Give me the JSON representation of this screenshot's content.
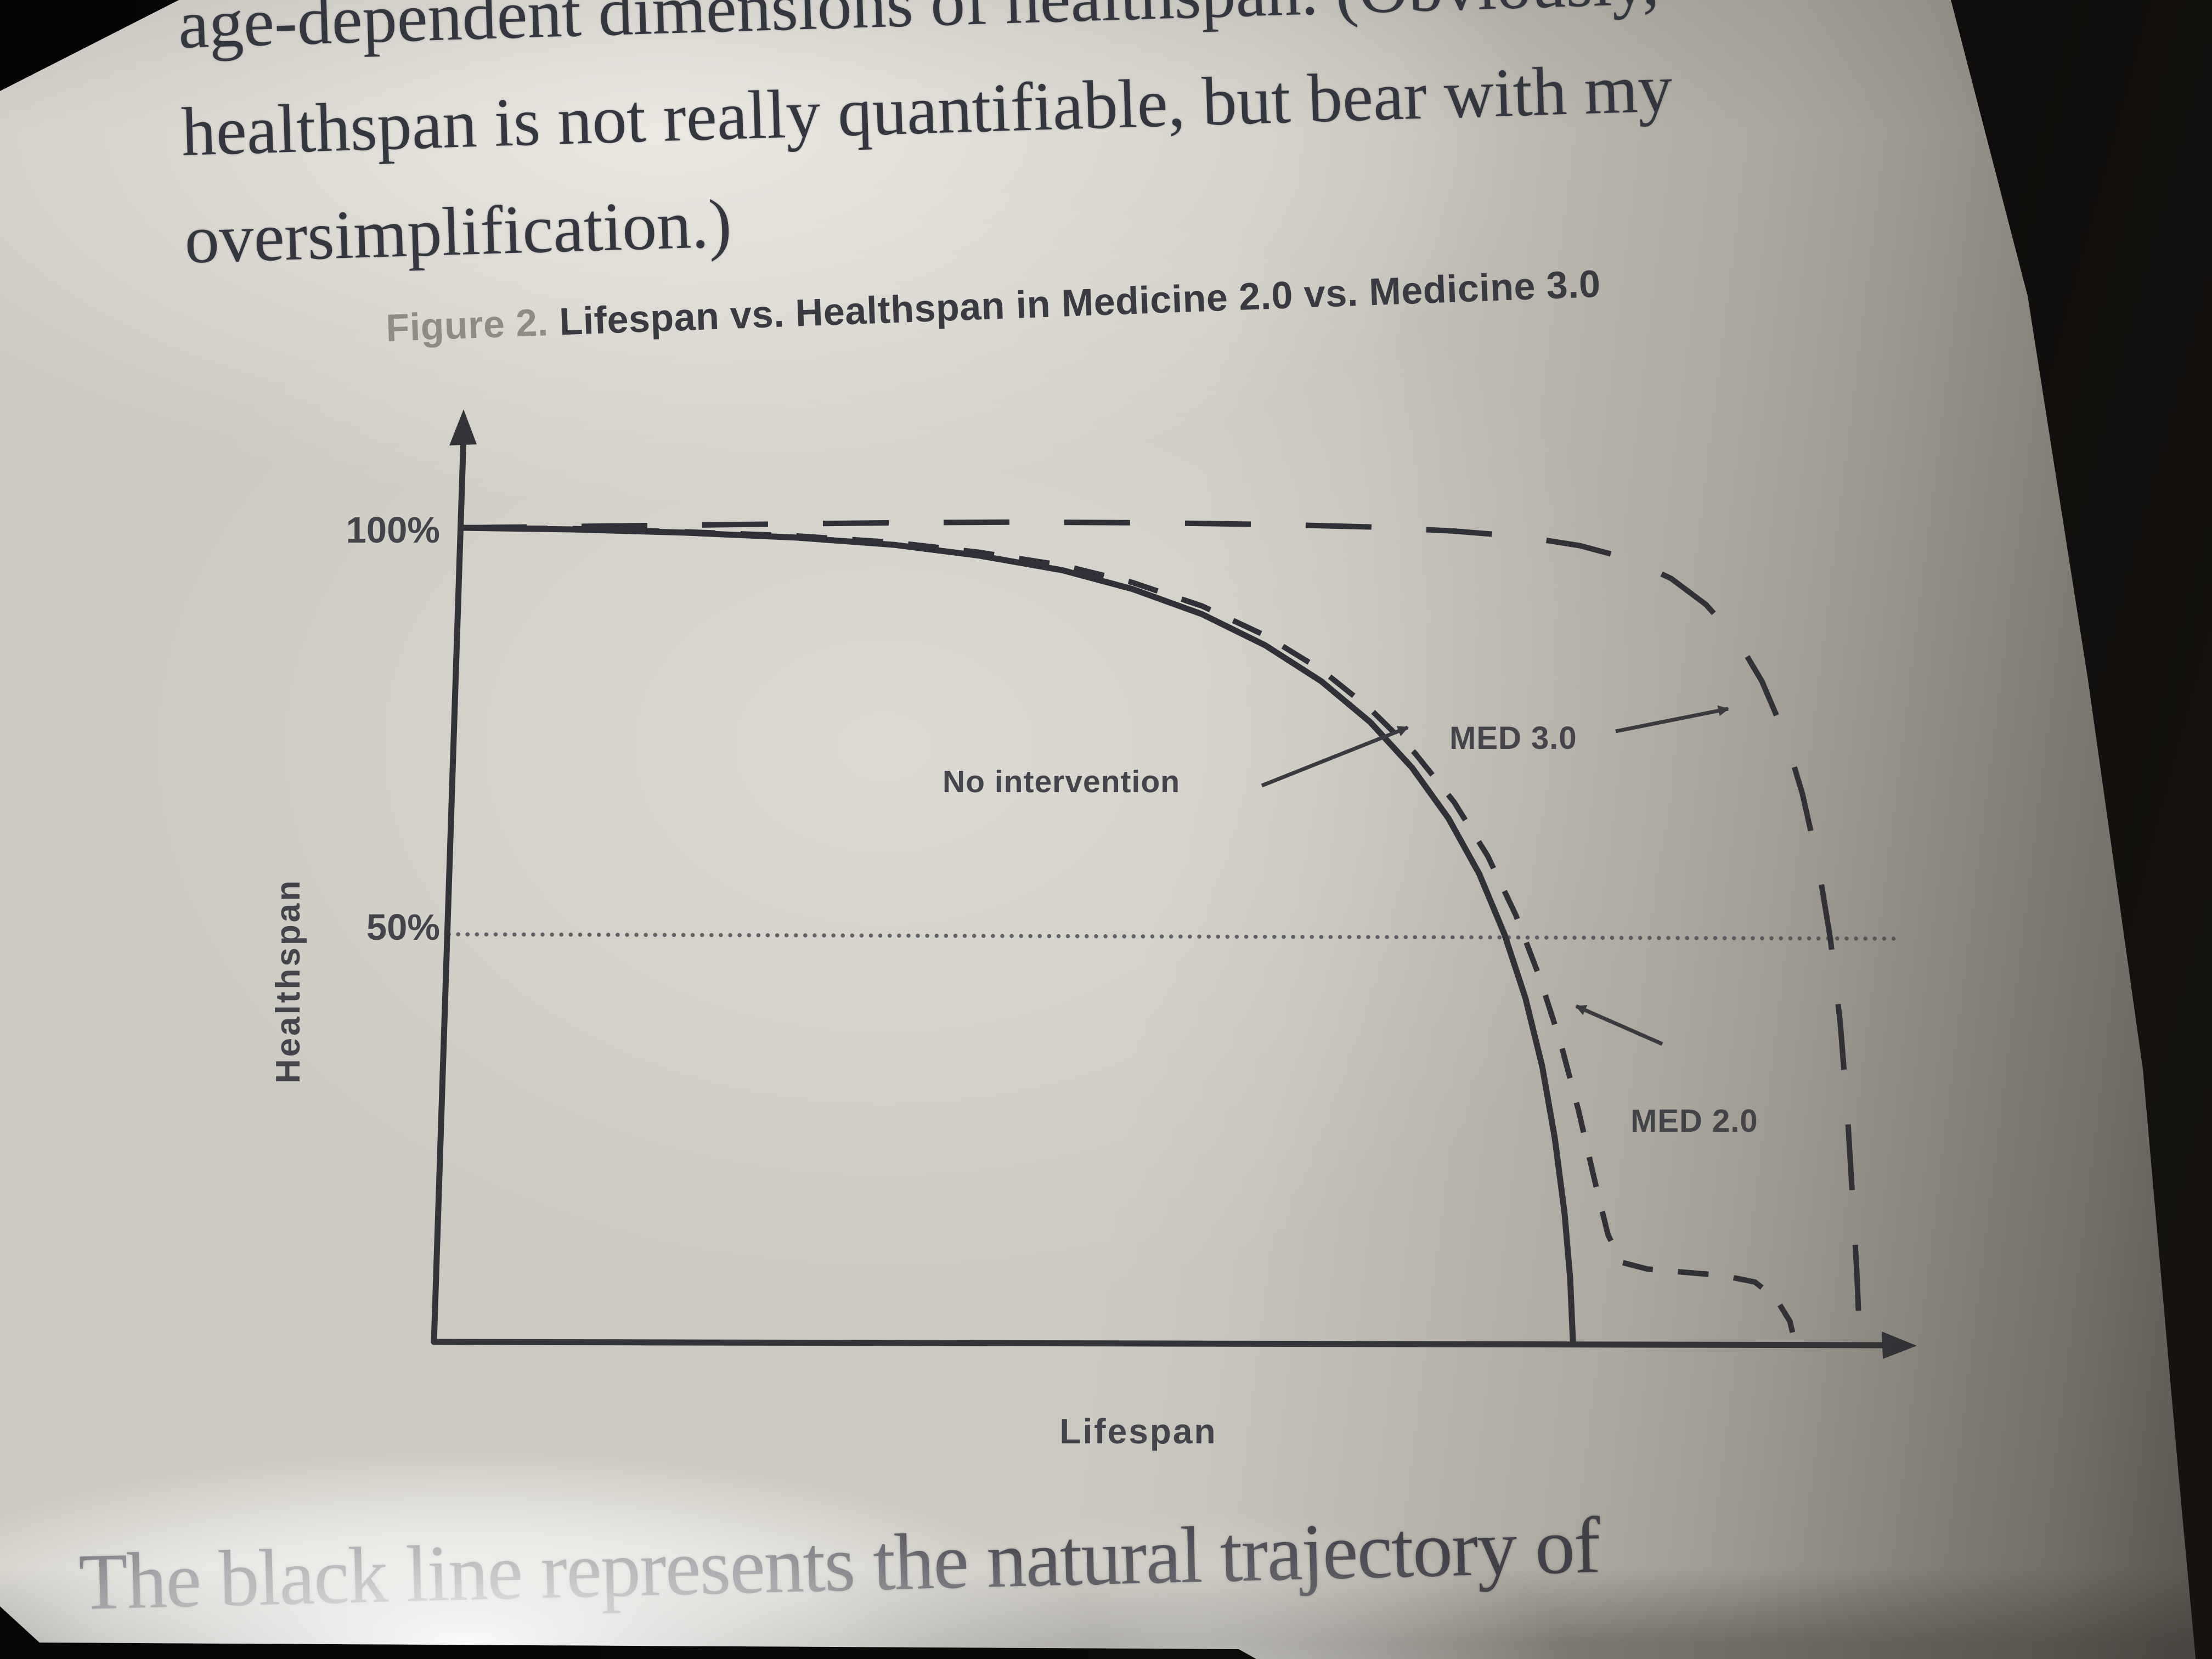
{
  "page": {
    "top_paragraph": {
      "lines": [
        "age-dependent dimensions of healthspan. (Obviously,",
        "healthspan is not really quantifiable, but bear with my",
        "oversimplification.)"
      ]
    },
    "figure": {
      "title_prefix": "Figure 2.",
      "title_text": "Lifespan vs. Healthspan in Medicine 2.0 vs. Medicine 3.0"
    },
    "bottom_paragraph": "The black line represents the natural trajectory of"
  },
  "chart_data": {
    "type": "line",
    "figure_label": "Figure 2.",
    "title": "Lifespan vs. Healthspan in Medicine 2.0 vs. Medicine 3.0",
    "xlabel": "Lifespan",
    "ylabel": "Healthspan",
    "xlim": [
      0,
      100
    ],
    "ylim": [
      0,
      105
    ],
    "ytick_labels": [
      "100%",
      "50%"
    ],
    "ytick_values": [
      100,
      50
    ],
    "xticks": [],
    "grid": "off",
    "gridlines": [
      {
        "y": 50,
        "style": "dotted"
      }
    ],
    "legend_position": "inline-annotations",
    "ink_color": "#303138",
    "series": [
      {
        "name": "No intervention",
        "style": "solid",
        "points": [
          [
            0,
            100
          ],
          [
            8,
            99.8
          ],
          [
            16,
            99.4
          ],
          [
            24,
            98.8
          ],
          [
            31,
            97.9
          ],
          [
            37,
            96.6
          ],
          [
            43,
            94.8
          ],
          [
            48,
            92.5
          ],
          [
            53,
            89.4
          ],
          [
            57.5,
            85.6
          ],
          [
            61.5,
            81.2
          ],
          [
            65,
            76.2
          ],
          [
            68,
            70.6
          ],
          [
            70.6,
            64.4
          ],
          [
            72.8,
            57.6
          ],
          [
            74.6,
            50.2
          ],
          [
            76.1,
            42.4
          ],
          [
            77.3,
            34
          ],
          [
            78.2,
            25.2
          ],
          [
            78.9,
            16
          ],
          [
            79.3,
            8
          ],
          [
            79.5,
            0
          ]
        ]
      },
      {
        "name": "MED 2.0",
        "style": "short-dash",
        "points": [
          [
            0,
            100
          ],
          [
            8,
            99.9
          ],
          [
            16,
            99.5
          ],
          [
            24,
            99
          ],
          [
            31,
            98.2
          ],
          [
            37,
            97
          ],
          [
            43,
            95.4
          ],
          [
            48,
            93.3
          ],
          [
            53,
            90.4
          ],
          [
            57.5,
            86.8
          ],
          [
            61.5,
            82.6
          ],
          [
            65,
            77.8
          ],
          [
            68.2,
            72.4
          ],
          [
            71,
            66.4
          ],
          [
            73.4,
            59.8
          ],
          [
            75.4,
            52.6
          ],
          [
            77.1,
            45
          ],
          [
            78.6,
            37
          ],
          [
            79.9,
            28.6
          ],
          [
            81,
            20.4
          ],
          [
            82,
            13.4
          ],
          [
            83,
            10
          ],
          [
            84.8,
            9.2
          ],
          [
            87.5,
            8.8
          ],
          [
            90.2,
            8.4
          ],
          [
            92.5,
            7.6
          ],
          [
            94,
            5.6
          ],
          [
            95,
            2.8
          ],
          [
            95.4,
            0
          ]
        ]
      },
      {
        "name": "MED 3.0",
        "style": "long-dash",
        "points": [
          [
            0,
            100
          ],
          [
            10,
            100.2
          ],
          [
            20,
            100.4
          ],
          [
            30,
            100.6
          ],
          [
            40,
            100.7
          ],
          [
            50,
            100.6
          ],
          [
            58,
            100.4
          ],
          [
            65,
            100.1
          ],
          [
            71,
            99.6
          ],
          [
            76,
            98.9
          ],
          [
            80,
            97.8
          ],
          [
            83.5,
            96.2
          ],
          [
            86.5,
            93.8
          ],
          [
            89,
            90.6
          ],
          [
            91.2,
            86.4
          ],
          [
            93,
            81.2
          ],
          [
            94.6,
            74.8
          ],
          [
            95.9,
            67.4
          ],
          [
            97,
            59
          ],
          [
            97.9,
            49.6
          ],
          [
            98.6,
            39.4
          ],
          [
            99.1,
            28.6
          ],
          [
            99.5,
            17.4
          ],
          [
            99.8,
            8.4
          ],
          [
            100,
            0
          ]
        ]
      }
    ],
    "annotations": [
      {
        "label": "No intervention",
        "points_to": "solid curve"
      },
      {
        "label": "MED 3.0",
        "points_to": "long-dash curve"
      },
      {
        "label": "MED 2.0",
        "points_to": "short-dash curve"
      }
    ]
  }
}
